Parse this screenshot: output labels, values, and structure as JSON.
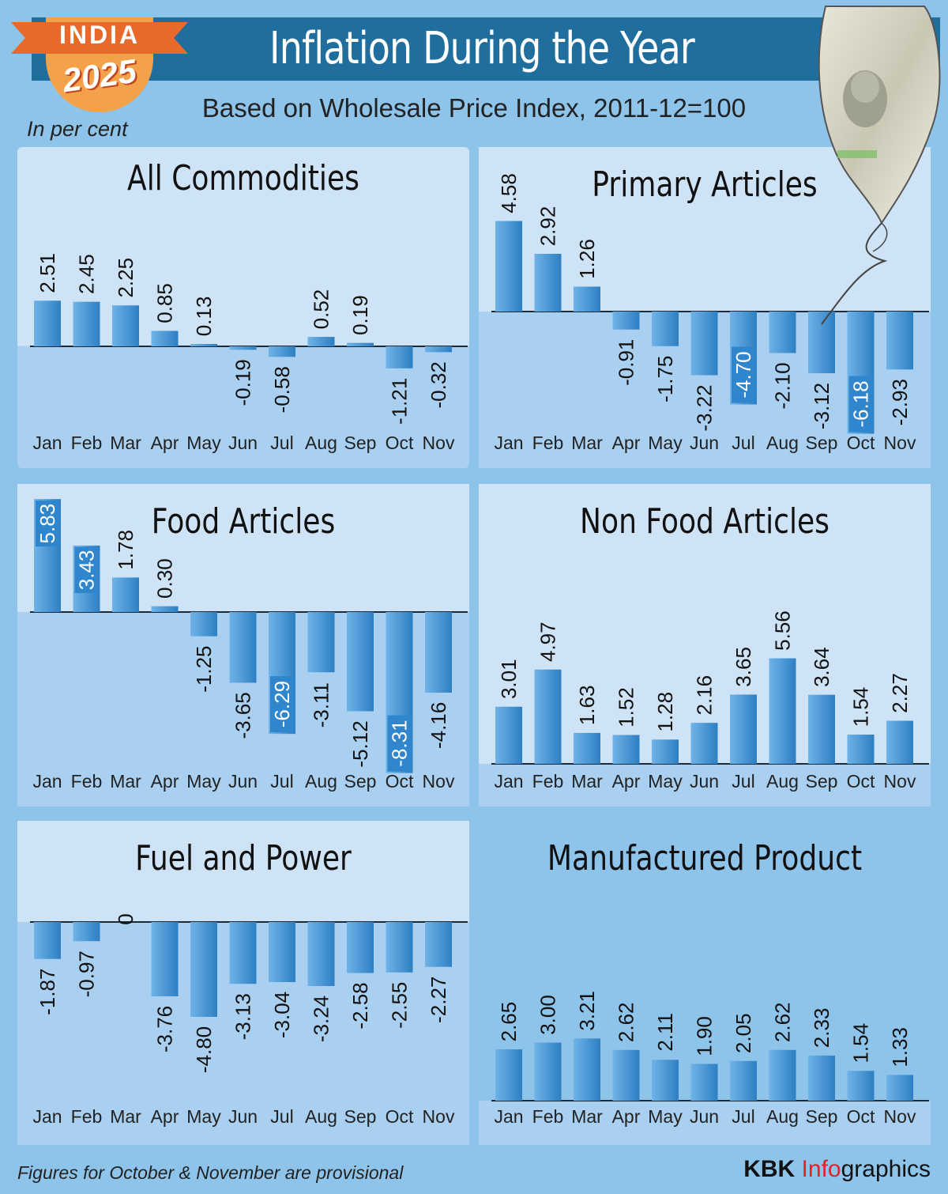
{
  "header": {
    "title": "Inflation During the Year",
    "subtitle": "Based on Wholesale Price Index, 2011-12=100",
    "unit_note": "In per cent",
    "badge_top": "INDIA",
    "badge_year": "2025"
  },
  "footer": {
    "note": "Figures for October & November are provisional",
    "credit_brand": "KBK",
    "credit_info": "Info",
    "credit_suffix": "graphics"
  },
  "colors": {
    "bar_gradient_dark": "#2d7fc2",
    "bar_gradient_light": "#6fb3e8",
    "panel_top": "#cfe3f6",
    "panel_bottom": "#a6cef0",
    "highlight_label_bg": "#2f86cc"
  },
  "chart_data": [
    {
      "type": "bar",
      "title": "All Commodities",
      "categories": [
        "Jan",
        "Feb",
        "Mar",
        "Apr",
        "May",
        "Jun",
        "Jul",
        "Aug",
        "Sep",
        "Oct",
        "Nov"
      ],
      "values": [
        2.51,
        2.45,
        2.25,
        0.85,
        0.13,
        -0.19,
        -0.58,
        0.52,
        0.19,
        -1.21,
        -0.32
      ],
      "labels": [
        "2.51",
        "2.45",
        "2.25",
        "0.85",
        "0.13",
        "-0.19",
        "-0.58",
        "0.52",
        "0.19",
        "-1.21",
        "-0.32"
      ],
      "highlight": [],
      "ylabel": "In per cent"
    },
    {
      "type": "bar",
      "title": "Primary Articles",
      "categories": [
        "Jan",
        "Feb",
        "Mar",
        "Apr",
        "May",
        "Jun",
        "Jul",
        "Aug",
        "Sep",
        "Oct",
        "Nov"
      ],
      "values": [
        4.58,
        2.92,
        1.26,
        -0.91,
        -1.75,
        -3.22,
        -4.7,
        -2.1,
        -3.12,
        -6.18,
        -2.93
      ],
      "labels": [
        "4.58",
        "2.92",
        "1.26",
        "-0.91",
        "-1.75",
        "-3.22",
        "-4.70",
        "-2.10",
        "-3.12",
        "-6.18",
        "-2.93"
      ],
      "highlight": [
        6,
        9
      ],
      "ylabel": "In per cent"
    },
    {
      "type": "bar",
      "title": "Food Articles",
      "categories": [
        "Jan",
        "Feb",
        "Mar",
        "Apr",
        "May",
        "Jun",
        "Jul",
        "Aug",
        "Sep",
        "Oct",
        "Nov"
      ],
      "values": [
        5.83,
        3.43,
        1.78,
        0.3,
        -1.25,
        -3.65,
        -6.29,
        -3.11,
        -5.12,
        -8.31,
        -4.16
      ],
      "labels": [
        "5.83",
        "3.43",
        "1.78",
        "0.30",
        "-1.25",
        "-3.65",
        "-6.29",
        "-3.11",
        "-5.12",
        "-8.31",
        "-4.16"
      ],
      "highlight": [
        0,
        1,
        6,
        9
      ],
      "ylabel": "In per cent"
    },
    {
      "type": "bar",
      "title": "Non Food Articles",
      "categories": [
        "Jan",
        "Feb",
        "Mar",
        "Apr",
        "May",
        "Jun",
        "Jul",
        "Aug",
        "Sep",
        "Oct",
        "Nov"
      ],
      "values": [
        3.01,
        4.97,
        1.63,
        1.52,
        1.28,
        2.16,
        3.65,
        5.56,
        3.64,
        1.54,
        2.27
      ],
      "labels": [
        "3.01",
        "4.97",
        "1.63",
        "1.52",
        "1.28",
        "2.16",
        "3.65",
        "5.56",
        "3.64",
        "1.54",
        "2.27"
      ],
      "highlight": [],
      "ylabel": "In per cent"
    },
    {
      "type": "bar",
      "title": "Fuel and Power",
      "categories": [
        "Jan",
        "Feb",
        "Mar",
        "Apr",
        "May",
        "Jun",
        "Jul",
        "Aug",
        "Sep",
        "Oct",
        "Nov"
      ],
      "values": [
        -1.87,
        -0.97,
        0,
        -3.76,
        -4.8,
        -3.13,
        -3.04,
        -3.24,
        -2.58,
        -2.55,
        -2.27
      ],
      "labels": [
        "-1.87",
        "-0.97",
        "0",
        "-3.76",
        "-4.80",
        "-3.13",
        "-3.04",
        "-3.24",
        "-2.58",
        "-2.55",
        "-2.27"
      ],
      "highlight": [],
      "ylabel": "In per cent"
    },
    {
      "type": "bar",
      "title": "Manufactured Product",
      "categories": [
        "Jan",
        "Feb",
        "Mar",
        "Apr",
        "May",
        "Jun",
        "Jul",
        "Aug",
        "Sep",
        "Oct",
        "Nov"
      ],
      "values": [
        2.65,
        3.0,
        3.21,
        2.62,
        2.11,
        1.9,
        2.05,
        2.62,
        2.33,
        1.54,
        1.33
      ],
      "labels": [
        "2.65",
        "3.00",
        "3.21",
        "2.62",
        "2.11",
        "1.90",
        "2.05",
        "2.62",
        "2.33",
        "1.54",
        "1.33"
      ],
      "highlight": [],
      "ylabel": "In per cent"
    }
  ]
}
